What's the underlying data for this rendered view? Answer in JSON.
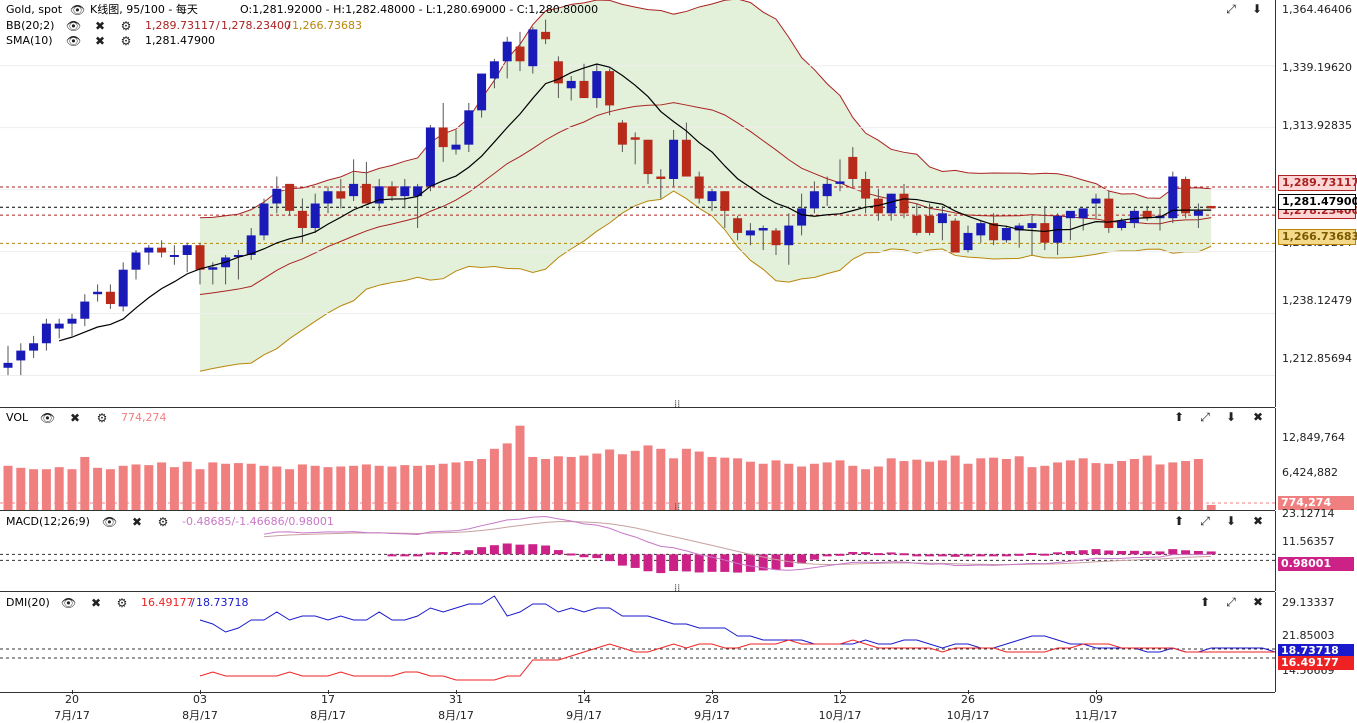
{
  "chart_data": {
    "type": "candlestick",
    "instrument": "Gold, spot",
    "header": {
      "title": "Gold, spot",
      "period": "K线图, 95/100 - 每天",
      "ohlc": "O:1,281.92000 - H:1,282.48000 - L:1,280.69000 - C:1,280.80000"
    },
    "indicators": {
      "bb": {
        "label": "BB(20;2)",
        "upper": "1,289.73117",
        "mid": "1,278.23400",
        "lower": "1,266.73683",
        "colors": {
          "upper": "#aa2222",
          "mid": "#aa2222",
          "lower": "#b8860b",
          "fill": "#e3f1da"
        }
      },
      "sma": {
        "label": "SMA(10)",
        "value": "1,281.47900"
      }
    },
    "price_axis": {
      "ticks": [
        "1,364.46406",
        "1,339.19620",
        "1,313.92835",
        "1,288.66049",
        "1,263.39264",
        "1,238.12479",
        "1,212.85694"
      ],
      "ylim": [
        1200,
        1366
      ]
    },
    "price_tags": [
      {
        "text": "1,289.73117",
        "bg": "#ffd6d6",
        "fg": "#aa2222",
        "border": "#aa2222"
      },
      {
        "text": "1,281.47900",
        "bg": "#ffffff",
        "fg": "#000000",
        "border": "#000000"
      },
      {
        "text": "1,278.23400",
        "bg": "#ffd6d6",
        "fg": "#aa2222",
        "border": "#aa2222"
      },
      {
        "text": "1,266.73683",
        "bg": "#f5d98a",
        "fg": "#7a5a00",
        "border": "#b8860b"
      }
    ],
    "candles": [
      [
        1216,
        1225,
        1213,
        1218
      ],
      [
        1219,
        1226,
        1213,
        1223
      ],
      [
        1223,
        1229,
        1220,
        1226
      ],
      [
        1226,
        1236,
        1223,
        1234
      ],
      [
        1232,
        1236,
        1228,
        1234
      ],
      [
        1234,
        1238,
        1229,
        1236
      ],
      [
        1236,
        1246,
        1233,
        1243
      ],
      [
        1246,
        1250,
        1243,
        1247
      ],
      [
        1247,
        1250,
        1240,
        1242
      ],
      [
        1241,
        1259,
        1239,
        1256
      ],
      [
        1256,
        1264,
        1252,
        1263
      ],
      [
        1263,
        1266,
        1258,
        1265
      ],
      [
        1265,
        1268,
        1261,
        1263
      ],
      [
        1262,
        1266,
        1258,
        1262
      ],
      [
        1262,
        1267,
        1255,
        1266
      ],
      [
        1266,
        1267,
        1250,
        1256
      ],
      [
        1256,
        1259,
        1250,
        1257
      ],
      [
        1257,
        1262,
        1250,
        1261
      ],
      [
        1262,
        1264,
        1252,
        1262
      ],
      [
        1262,
        1273,
        1260,
        1270
      ],
      [
        1270,
        1285,
        1268,
        1283
      ],
      [
        1283,
        1294,
        1279,
        1289
      ],
      [
        1291,
        1291,
        1278,
        1280
      ],
      [
        1280,
        1285,
        1267,
        1273
      ],
      [
        1273,
        1287,
        1271,
        1283
      ],
      [
        1283,
        1290,
        1279,
        1288
      ],
      [
        1288,
        1293,
        1281,
        1285
      ],
      [
        1286,
        1301,
        1284,
        1291
      ],
      [
        1291,
        1300,
        1284,
        1283
      ],
      [
        1283,
        1293,
        1280,
        1290
      ],
      [
        1290,
        1292,
        1284,
        1286
      ],
      [
        1286,
        1293,
        1281,
        1290
      ],
      [
        1286,
        1291,
        1273,
        1290
      ],
      [
        1290,
        1315,
        1288,
        1314
      ],
      [
        1314,
        1324,
        1300,
        1306
      ],
      [
        1305,
        1313,
        1303,
        1307
      ],
      [
        1307,
        1324,
        1304,
        1321
      ],
      [
        1321,
        1335,
        1318,
        1336
      ],
      [
        1334,
        1342,
        1330,
        1341
      ],
      [
        1341,
        1351,
        1334,
        1349
      ],
      [
        1347,
        1353,
        1337,
        1341
      ],
      [
        1339,
        1355,
        1336,
        1354
      ],
      [
        1353,
        1358,
        1348,
        1350
      ],
      [
        1341,
        1343,
        1326,
        1332
      ],
      [
        1330,
        1335,
        1325,
        1333
      ],
      [
        1333,
        1340,
        1327,
        1326
      ],
      [
        1326,
        1340,
        1322,
        1337
      ],
      [
        1337,
        1338,
        1319,
        1323
      ],
      [
        1316,
        1317,
        1304,
        1307
      ],
      [
        1310,
        1312,
        1299,
        1309
      ],
      [
        1309,
        1309,
        1291,
        1295
      ],
      [
        1294,
        1297,
        1285,
        1293
      ],
      [
        1293,
        1313,
        1290,
        1309
      ],
      [
        1309,
        1316,
        1294,
        1294
      ],
      [
        1294,
        1296,
        1283,
        1285
      ],
      [
        1284,
        1289,
        1280,
        1288
      ],
      [
        1288,
        1288,
        1273,
        1280
      ],
      [
        1277,
        1278,
        1268,
        1271
      ],
      [
        1270,
        1275,
        1266,
        1272
      ],
      [
        1272,
        1274,
        1264,
        1273
      ],
      [
        1272,
        1273,
        1262,
        1266
      ],
      [
        1266,
        1279,
        1258,
        1274
      ],
      [
        1274,
        1287,
        1270,
        1281
      ],
      [
        1281,
        1292,
        1279,
        1288
      ],
      [
        1286,
        1294,
        1282,
        1291
      ],
      [
        1291,
        1301,
        1288,
        1292
      ],
      [
        1302,
        1306,
        1290,
        1293
      ],
      [
        1293,
        1296,
        1279,
        1285
      ],
      [
        1285,
        1289,
        1276,
        1279
      ],
      [
        1279,
        1287,
        1276,
        1287
      ],
      [
        1287,
        1291,
        1277,
        1279
      ],
      [
        1278,
        1283,
        1270,
        1271
      ],
      [
        1278,
        1283,
        1270,
        1271
      ],
      [
        1275,
        1282,
        1268,
        1279
      ],
      [
        1276,
        1277,
        1264,
        1263
      ],
      [
        1264,
        1274,
        1263,
        1271
      ],
      [
        1270,
        1276,
        1267,
        1275
      ],
      [
        1275,
        1279,
        1266,
        1268
      ],
      [
        1268,
        1274,
        1267,
        1273
      ],
      [
        1272,
        1275,
        1265,
        1274
      ],
      [
        1273,
        1278,
        1262,
        1275
      ],
      [
        1275,
        1282,
        1264,
        1267
      ],
      [
        1267,
        1279,
        1262,
        1278
      ],
      [
        1277,
        1279,
        1268,
        1280
      ],
      [
        1277,
        1281,
        1272,
        1281
      ],
      [
        1283,
        1287,
        1277,
        1285
      ],
      [
        1285,
        1288,
        1271,
        1273
      ],
      [
        1273,
        1277,
        1272,
        1276
      ],
      [
        1275,
        1281,
        1273,
        1280
      ],
      [
        1280,
        1282,
        1276,
        1277
      ],
      [
        1277,
        1281,
        1272,
        1278
      ],
      [
        1277,
        1296,
        1275,
        1294
      ],
      [
        1293,
        1294,
        1277,
        1279
      ],
      [
        1278,
        1283,
        1273,
        1280
      ],
      [
        1282,
        1282,
        1281,
        1281
      ]
    ],
    "x_ticks": [
      {
        "day": "20",
        "month": "7月/17",
        "i": 5
      },
      {
        "day": "03",
        "month": "8月/17",
        "i": 15
      },
      {
        "day": "17",
        "month": "8月/17",
        "i": 25
      },
      {
        "day": "31",
        "month": "8月/17",
        "i": 35
      },
      {
        "day": "14",
        "month": "9月/17",
        "i": 45
      },
      {
        "day": "28",
        "month": "9月/17",
        "i": 55
      },
      {
        "day": "12",
        "month": "10月/17",
        "i": 65
      },
      {
        "day": "26",
        "month": "10月/17",
        "i": 75
      },
      {
        "day": "09",
        "month": "11月/17",
        "i": 85
      }
    ],
    "vol": {
      "label": "VOL",
      "value": "774,274",
      "axis": [
        "12,849,764",
        "6,424,882"
      ],
      "tag": "774,274",
      "ymax": 15000000,
      "values": [
        6500000,
        6200000,
        6000000,
        6000000,
        6300000,
        6000000,
        7800000,
        6200000,
        6000000,
        6500000,
        6700000,
        6600000,
        7000000,
        6300000,
        7100000,
        6000000,
        7000000,
        6800000,
        6900000,
        6800000,
        6500000,
        6400000,
        6000000,
        6700000,
        6500000,
        6300000,
        6400000,
        6500000,
        6700000,
        6500000,
        6400000,
        6600000,
        6500000,
        6600000,
        6800000,
        7000000,
        7200000,
        7500000,
        9000000,
        9800000,
        12400000,
        7800000,
        7500000,
        7900000,
        7800000,
        8000000,
        8300000,
        8900000,
        8200000,
        8700000,
        9500000,
        9000000,
        7600000,
        9000000,
        8600000,
        7800000,
        7700000,
        7600000,
        7100000,
        6800000,
        7300000,
        6800000,
        6400000,
        6800000,
        7000000,
        7300000,
        6500000,
        6000000,
        6400000,
        7600000,
        7200000,
        7400000,
        7100000,
        7300000,
        8000000,
        6800000,
        7600000,
        7700000,
        7500000,
        7900000,
        6300000,
        6500000,
        7000000,
        7300000,
        7600000,
        6900000,
        6800000,
        7200000,
        7500000,
        8000000,
        6700000,
        7000000,
        7200000,
        7500000,
        750000
      ],
      "color": "#f08080"
    },
    "macd": {
      "label": "MACD(12;26;9)",
      "values_text": "-0.48685/-1.46686/0.98001",
      "axis": [
        "23.12714",
        "11.56357"
      ],
      "tag": "0.98001",
      "color_macd": "#c878c8",
      "color_signal": "#c8a0a0",
      "color_hist": "#cc2288"
    },
    "dmi": {
      "label": "DMI(20)",
      "minus": "16.49177",
      "plus": "18.73718",
      "axis": [
        "29.13337",
        "21.85003",
        "14.56669"
      ],
      "tags": [
        {
          "text": "18.73718",
          "bg": "#1a1acc"
        },
        {
          "text": "16.49177",
          "bg": "#ee2222"
        }
      ],
      "plus_values": [
        26,
        25,
        23,
        24,
        26,
        26,
        28,
        26,
        27,
        27,
        26,
        27,
        26,
        26,
        28,
        26,
        26,
        27,
        29,
        28,
        29,
        30,
        30,
        32,
        27,
        28,
        30,
        30,
        28,
        29,
        28,
        29,
        29,
        27,
        27,
        27,
        26,
        25,
        25,
        24,
        24,
        24,
        22,
        22,
        21,
        21,
        21,
        21,
        20,
        20,
        20,
        20,
        21,
        20,
        20,
        21,
        21,
        20,
        19,
        20,
        20,
        19,
        19,
        20,
        21,
        22,
        22,
        21,
        20,
        20,
        19,
        19,
        19,
        19,
        18,
        18,
        19,
        18,
        18,
        19,
        19,
        19,
        19,
        19,
        18,
        18,
        19,
        18,
        18,
        19,
        19,
        20,
        20,
        19,
        19
      ],
      "minus_values": [
        12,
        13,
        12,
        12,
        12,
        12,
        12,
        13,
        12,
        12,
        12,
        13,
        12,
        12,
        12,
        12,
        13,
        13,
        12,
        12,
        11,
        11,
        11,
        11,
        12,
        12,
        16,
        16,
        16,
        17,
        18,
        19,
        20,
        19,
        18,
        18,
        19,
        20,
        19,
        20,
        20,
        19,
        19,
        20,
        20,
        20,
        21,
        20,
        20,
        20,
        20,
        21,
        20,
        19,
        19,
        19,
        19,
        19,
        18,
        19,
        19,
        19,
        19,
        18,
        18,
        18,
        18,
        19,
        19,
        20,
        20,
        20,
        19,
        19,
        19,
        19,
        19,
        18,
        18,
        18,
        18,
        18,
        18,
        18,
        18,
        17,
        17,
        17,
        17,
        17,
        17,
        17,
        17,
        16,
        16
      ],
      "color_plus": "#1a1acc",
      "color_minus": "#ee2222"
    }
  }
}
